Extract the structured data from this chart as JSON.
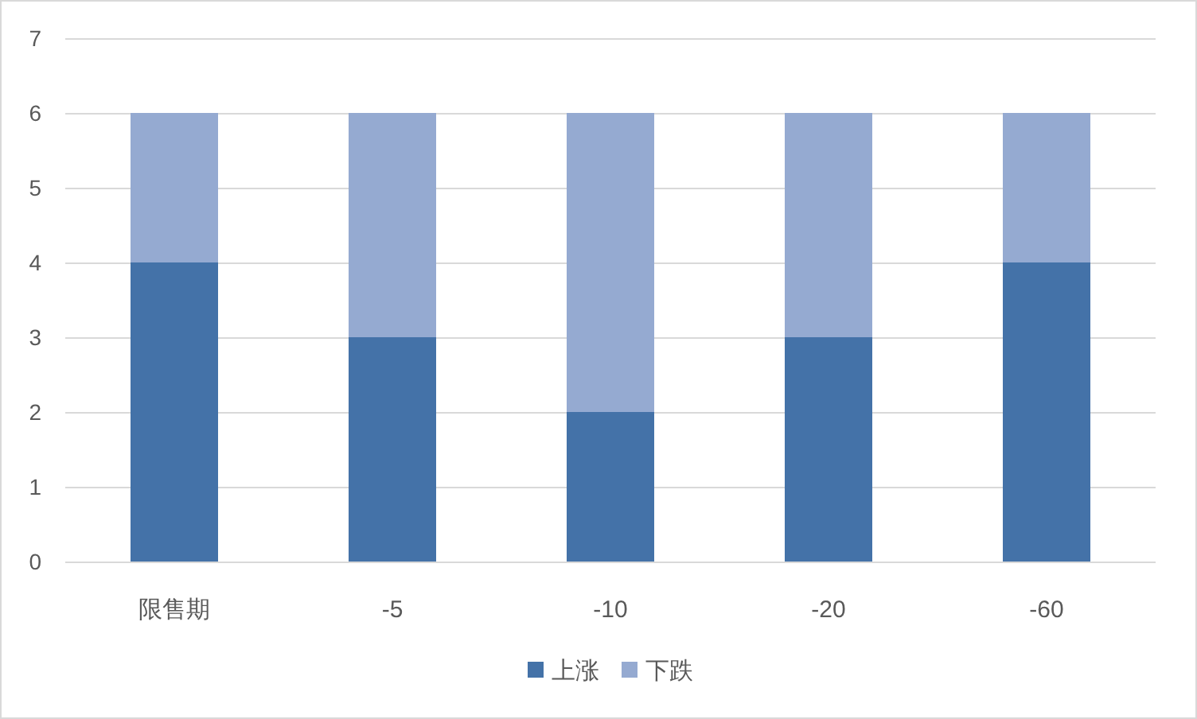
{
  "chart_data": {
    "type": "bar",
    "stacked": true,
    "categories": [
      "限售期",
      "-5",
      "-10",
      "-20",
      "-60"
    ],
    "series": [
      {
        "name": "上涨",
        "color": "#4472a8",
        "values": [
          4,
          3,
          2,
          3,
          4
        ]
      },
      {
        "name": "下跌",
        "color": "#95aad1",
        "values": [
          2,
          3,
          4,
          3,
          2
        ]
      }
    ],
    "ylim": [
      0,
      7
    ],
    "yticks": [
      0,
      1,
      2,
      3,
      4,
      5,
      6,
      7
    ],
    "grid": "y",
    "legend": "bottom"
  }
}
